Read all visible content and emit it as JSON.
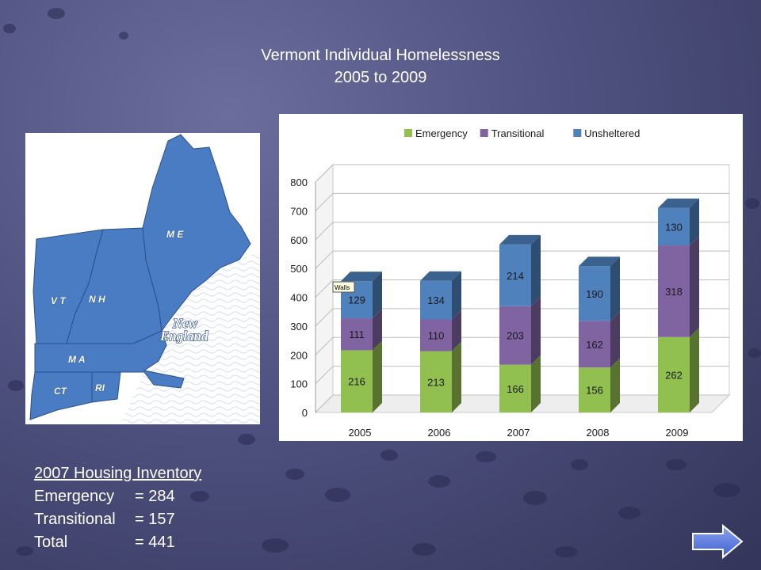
{
  "slide": {
    "title_line1": "Vermont Individual Homelessness",
    "title_line2": "2005 to 2009"
  },
  "map": {
    "labels": {
      "me": "M E",
      "vt": "V T",
      "nh": "N H",
      "ma": "M A",
      "ct": "CT",
      "ri": "RI",
      "new": "New",
      "england": "England"
    },
    "colors": {
      "land": "#4a7cc4",
      "border": "#2a4f8a",
      "text": "#ffffff",
      "accent": "#1e3f80"
    }
  },
  "chart_data": {
    "type": "bar",
    "stacked": true,
    "three_d": true,
    "categories": [
      "2005",
      "2006",
      "2007",
      "2008",
      "2009"
    ],
    "series": [
      {
        "name": "Emergency",
        "color": "#92c050",
        "values": [
          216,
          213,
          166,
          156,
          262
        ]
      },
      {
        "name": "Transitional",
        "color": "#8064a2",
        "values": [
          111,
          110,
          203,
          162,
          318
        ]
      },
      {
        "name": "Unsheltered",
        "color": "#4f81bd",
        "values": [
          129,
          134,
          214,
          190,
          130
        ]
      }
    ],
    "ylim": [
      0,
      800
    ],
    "yticks": [
      "0",
      "100",
      "200",
      "300",
      "400",
      "500",
      "600",
      "700",
      "800"
    ],
    "grid": true,
    "legend": "top",
    "annotation": "Walls"
  },
  "inventory": {
    "title": "2007 Housing Inventory",
    "rows": [
      {
        "label": "Emergency",
        "value": "= 284"
      },
      {
        "label": "Transitional",
        "value": "= 157"
      },
      {
        "label": "Total",
        "value": "= 441"
      }
    ]
  },
  "nav": {
    "icon": "right-arrow-icon",
    "color": "#5a7de0"
  }
}
